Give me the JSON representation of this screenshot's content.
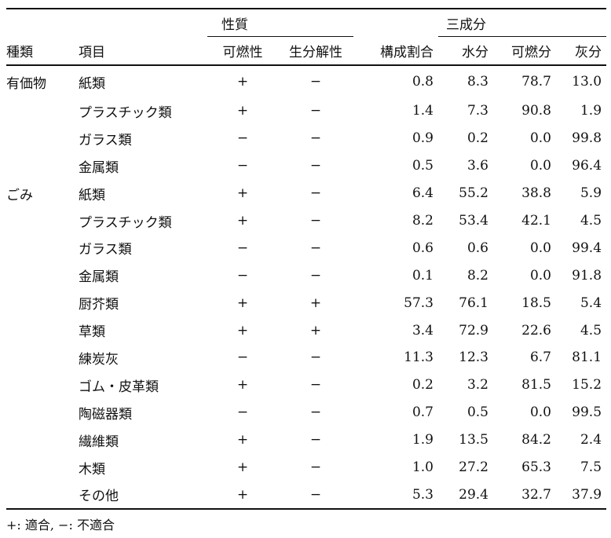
{
  "header": {
    "group_properties": "性質",
    "group_three_components": "三成分",
    "col_category": "種類",
    "col_item": "項目",
    "col_flammable": "可燃性",
    "col_biodegradable": "生分解性",
    "col_composition": "構成割合",
    "col_water": "水分",
    "col_combustible": "可燃分",
    "col_ash": "灰分"
  },
  "rows": [
    {
      "category": "有価物",
      "item": "紙類",
      "flammable": "+",
      "biodegradable": "−",
      "composition": "0.8",
      "water": "8.3",
      "combustible": "78.7",
      "ash": "13.0"
    },
    {
      "category": "",
      "item": "プラスチック類",
      "flammable": "+",
      "biodegradable": "−",
      "composition": "1.4",
      "water": "7.3",
      "combustible": "90.8",
      "ash": "1.9"
    },
    {
      "category": "",
      "item": "ガラス類",
      "flammable": "−",
      "biodegradable": "−",
      "composition": "0.9",
      "water": "0.2",
      "combustible": "0.0",
      "ash": "99.8"
    },
    {
      "category": "",
      "item": "金属類",
      "flammable": "−",
      "biodegradable": "−",
      "composition": "0.5",
      "water": "3.6",
      "combustible": "0.0",
      "ash": "96.4"
    },
    {
      "category": "ごみ",
      "item": "紙類",
      "flammable": "+",
      "biodegradable": "−",
      "composition": "6.4",
      "water": "55.2",
      "combustible": "38.8",
      "ash": "5.9"
    },
    {
      "category": "",
      "item": "プラスチック類",
      "flammable": "+",
      "biodegradable": "−",
      "composition": "8.2",
      "water": "53.4",
      "combustible": "42.1",
      "ash": "4.5"
    },
    {
      "category": "",
      "item": "ガラス類",
      "flammable": "−",
      "biodegradable": "−",
      "composition": "0.6",
      "water": "0.6",
      "combustible": "0.0",
      "ash": "99.4"
    },
    {
      "category": "",
      "item": "金属類",
      "flammable": "−",
      "biodegradable": "−",
      "composition": "0.1",
      "water": "8.2",
      "combustible": "0.0",
      "ash": "91.8"
    },
    {
      "category": "",
      "item": "厨芥類",
      "flammable": "+",
      "biodegradable": "+",
      "composition": "57.3",
      "water": "76.1",
      "combustible": "18.5",
      "ash": "5.4"
    },
    {
      "category": "",
      "item": "草類",
      "flammable": "+",
      "biodegradable": "+",
      "composition": "3.4",
      "water": "72.9",
      "combustible": "22.6",
      "ash": "4.5"
    },
    {
      "category": "",
      "item": "練炭灰",
      "flammable": "−",
      "biodegradable": "−",
      "composition": "11.3",
      "water": "12.3",
      "combustible": "6.7",
      "ash": "81.1"
    },
    {
      "category": "",
      "item": "ゴム・皮革類",
      "flammable": "+",
      "biodegradable": "−",
      "composition": "0.2",
      "water": "3.2",
      "combustible": "81.5",
      "ash": "15.2"
    },
    {
      "category": "",
      "item": "陶磁器類",
      "flammable": "−",
      "biodegradable": "−",
      "composition": "0.7",
      "water": "0.5",
      "combustible": "0.0",
      "ash": "99.5"
    },
    {
      "category": "",
      "item": "繊維類",
      "flammable": "+",
      "biodegradable": "−",
      "composition": "1.9",
      "water": "13.5",
      "combustible": "84.2",
      "ash": "2.4"
    },
    {
      "category": "",
      "item": "木類",
      "flammable": "+",
      "biodegradable": "−",
      "composition": "1.0",
      "water": "27.2",
      "combustible": "65.3",
      "ash": "7.5"
    },
    {
      "category": "",
      "item": "その他",
      "flammable": "+",
      "biodegradable": "−",
      "composition": "5.3",
      "water": "29.4",
      "combustible": "32.7",
      "ash": "37.9"
    }
  ],
  "footnote": "+: 適合, −: 不適合"
}
